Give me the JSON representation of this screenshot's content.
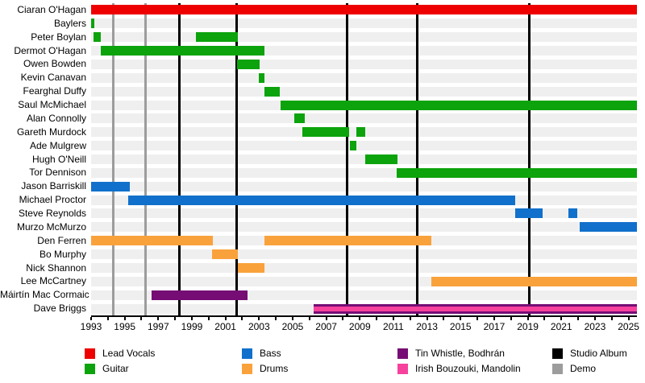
{
  "chart_data": {
    "type": "gantt",
    "description": "Band members timeline (instrument tenures with studio album and demo markers)",
    "axis": {
      "x_min": 1993,
      "x_max": 2025.5,
      "x_tick_labels": [
        "1993",
        "1995",
        "1997",
        "1999",
        "2001",
        "2003",
        "2005",
        "2007",
        "2009",
        "2011",
        "2013",
        "2015",
        "2017",
        "2019",
        "2021",
        "2023",
        "2025"
      ],
      "minor_tick_every": 1,
      "grid": false
    },
    "colors": {
      "lead_vocals": "#ee0000",
      "guitar": "#0ca30c",
      "bass": "#1170cb",
      "drums": "#f9a23c",
      "tin_whistle": "#750d75",
      "irish_bouzouki": "#f6419d",
      "studio_album": "#000000",
      "demo": "#9c9c9c",
      "row_band": "#efefef"
    },
    "members": [
      {
        "name": "Ciaran O'Hagan",
        "role": "lead_vocals",
        "bars": [
          [
            1993,
            2025.5
          ]
        ]
      },
      {
        "name": "Baylers",
        "role": "guitar",
        "bars": [
          [
            1993,
            1993.2
          ]
        ]
      },
      {
        "name": "Peter Boylan",
        "role": "guitar",
        "bars": [
          [
            1993.15,
            1993.6
          ],
          [
            1999.25,
            2001.75
          ]
        ]
      },
      {
        "name": "Dermot O'Hagan",
        "role": "guitar",
        "bars": [
          [
            1993.6,
            2003.3
          ]
        ]
      },
      {
        "name": "Owen Bowden",
        "role": "guitar",
        "bars": [
          [
            2001.7,
            2003.05
          ]
        ]
      },
      {
        "name": "Kevin Canavan",
        "role": "guitar",
        "bars": [
          [
            2003.0,
            2003.3
          ]
        ]
      },
      {
        "name": "Fearghal Duffy",
        "role": "guitar",
        "bars": [
          [
            2003.3,
            2004.25
          ]
        ]
      },
      {
        "name": "Saul McMichael",
        "role": "guitar",
        "bars": [
          [
            2004.3,
            2025.5
          ]
        ]
      },
      {
        "name": "Alan Connolly",
        "role": "guitar",
        "bars": [
          [
            2005.1,
            2005.7
          ]
        ]
      },
      {
        "name": "Gareth Murdock",
        "role": "guitar",
        "bars": [
          [
            2005.6,
            2008.35
          ],
          [
            2008.8,
            2009.3
          ]
        ]
      },
      {
        "name": "Ade Mulgrew",
        "role": "guitar",
        "bars": [
          [
            2008.4,
            2008.8
          ]
        ]
      },
      {
        "name": "Hugh O'Neill",
        "role": "guitar",
        "bars": [
          [
            2009.3,
            2011.25
          ]
        ]
      },
      {
        "name": "Tor Dennison",
        "role": "guitar",
        "bars": [
          [
            2011.2,
            2025.5
          ]
        ]
      },
      {
        "name": "Jason Barriskill",
        "role": "bass",
        "bars": [
          [
            1993,
            1995.3
          ]
        ]
      },
      {
        "name": "Michael Proctor",
        "role": "bass",
        "bars": [
          [
            1995.2,
            2018.25
          ]
        ]
      },
      {
        "name": "Steve Reynolds",
        "role": "bass",
        "bars": [
          [
            2018.25,
            2019.9
          ],
          [
            2021.4,
            2021.95
          ]
        ]
      },
      {
        "name": "Murzo McMurzo",
        "role": "bass",
        "bars": [
          [
            2022.1,
            2025.5
          ]
        ]
      },
      {
        "name": "Den Ferren",
        "role": "drums",
        "bars": [
          [
            1993,
            2000.25
          ],
          [
            2003.3,
            2013.25
          ]
        ]
      },
      {
        "name": "Bo Murphy",
        "role": "drums",
        "bars": [
          [
            2000.2,
            2001.75
          ]
        ]
      },
      {
        "name": "Nick Shannon",
        "role": "drums",
        "bars": [
          [
            2001.75,
            2003.3
          ]
        ]
      },
      {
        "name": "Lee McCartney",
        "role": "drums",
        "bars": [
          [
            2013.25,
            2025.5
          ]
        ]
      },
      {
        "name": "Máirtín Mac Cormaic",
        "role": "tin_whistle",
        "bars": [
          [
            1996.6,
            2002.3
          ]
        ]
      },
      {
        "name": "Dave Briggs",
        "role": "tin_whistle",
        "stripe_role": "irish_bouzouki",
        "bars": [
          [
            2006.25,
            2025.5
          ]
        ]
      }
    ],
    "events": {
      "studio_albums": [
        1998.25,
        2001.65,
        2008.25,
        2012.4,
        2019.1
      ],
      "demos": [
        1994.3,
        1996.25
      ]
    },
    "legend": [
      {
        "label": "Lead Vocals",
        "role": "lead_vocals"
      },
      {
        "label": "Guitar",
        "role": "guitar"
      },
      {
        "label": "Bass",
        "role": "bass"
      },
      {
        "label": "Drums",
        "role": "drums"
      },
      {
        "label": "Tin Whistle, Bodhrán",
        "role": "tin_whistle"
      },
      {
        "label": "Irish Bouzouki, Mandolin",
        "role": "irish_bouzouki"
      },
      {
        "label": "Studio Album",
        "role": "studio_album"
      },
      {
        "label": "Demo",
        "role": "demo"
      }
    ]
  }
}
